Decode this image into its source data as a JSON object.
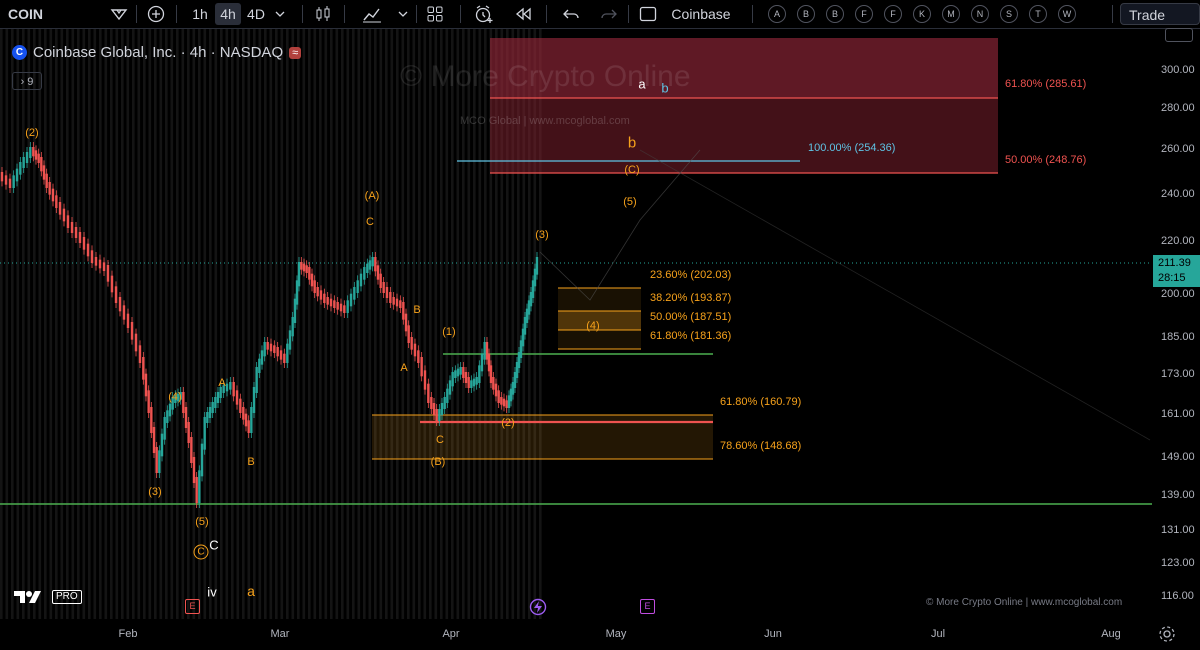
{
  "toolbar": {
    "symbol": "COIN",
    "intervals": [
      "1h",
      "4h",
      "4D"
    ],
    "active_interval": "4h",
    "exchange_label": "Coinbase",
    "alerts_letters": [
      "A",
      "B",
      "B",
      "F",
      "F",
      "K",
      "M",
      "N",
      "S",
      "T",
      "W"
    ],
    "trade_label": "Trade"
  },
  "legend": {
    "title": "Coinbase Global, Inc. · 4h · NASDAQ",
    "indicator_count": "9"
  },
  "watermark": {
    "main": "© More Crypto Online",
    "sub": "MCO Global   |   www.mcoglobal.com"
  },
  "price_axis": {
    "ticks": [
      "300.00",
      "280.00",
      "260.00",
      "240.00",
      "220.00",
      "200.00",
      "185.00",
      "173.00",
      "161.00",
      "149.00",
      "139.00",
      "131.00",
      "123.00",
      "116.00"
    ],
    "current_price": "211.39",
    "countdown": "28:15",
    "current_price_color": "#26a69a"
  },
  "time_axis": {
    "ticks": [
      "Feb",
      "Mar",
      "Apr",
      "May",
      "Jun",
      "Jul",
      "Aug"
    ]
  },
  "fib_levels": {
    "upper": [
      "61.80% (285.61)",
      "50.00% (248.76)"
    ],
    "extension": "100.00% (254.36)",
    "mid": [
      "23.60% (202.03)",
      "38.20% (193.87)",
      "50.00% (187.51)",
      "61.80% (181.36)"
    ],
    "lower": [
      "61.80% (160.79)",
      "78.60% (148.68)"
    ]
  },
  "wave_labels": {
    "w2_top": "(2)",
    "w4a": "(4)",
    "w3a": "(3)",
    "w5a": "(5)",
    "cA": "A",
    "cB": "B",
    "circC": "C",
    "cC": "C",
    "iv": "iv",
    "a_low": "a",
    "bigA": "(A)",
    "smallC": "C",
    "B2": "B",
    "A2": "A",
    "w1": "(1)",
    "C2": "C",
    "bigB": "(B)",
    "w2b": "(2)",
    "w3b": "(3)",
    "w4b": "(4)",
    "w5b": "(5)",
    "bigC": "(C)",
    "b_orange": "b",
    "a_white": "a",
    "b_blue": "b"
  },
  "copyright": "© More Crypto Online   |   www.mcoglobal.com",
  "colors": {
    "up": "#26a69a",
    "down": "#ef5350",
    "fib_orange": "#f7a21b",
    "fib_red": "#ef5350",
    "fib_blue": "#5fc3e4",
    "support_green": "#4caf50",
    "target_zone": "#7a1f2b"
  },
  "icons": [
    "search-icon",
    "plus-icon",
    "candles-icon",
    "indicators-icon",
    "layout-icon",
    "alert-icon",
    "replay-icon",
    "undo-icon",
    "redo-icon",
    "earnings-icon",
    "lightning-icon"
  ]
}
